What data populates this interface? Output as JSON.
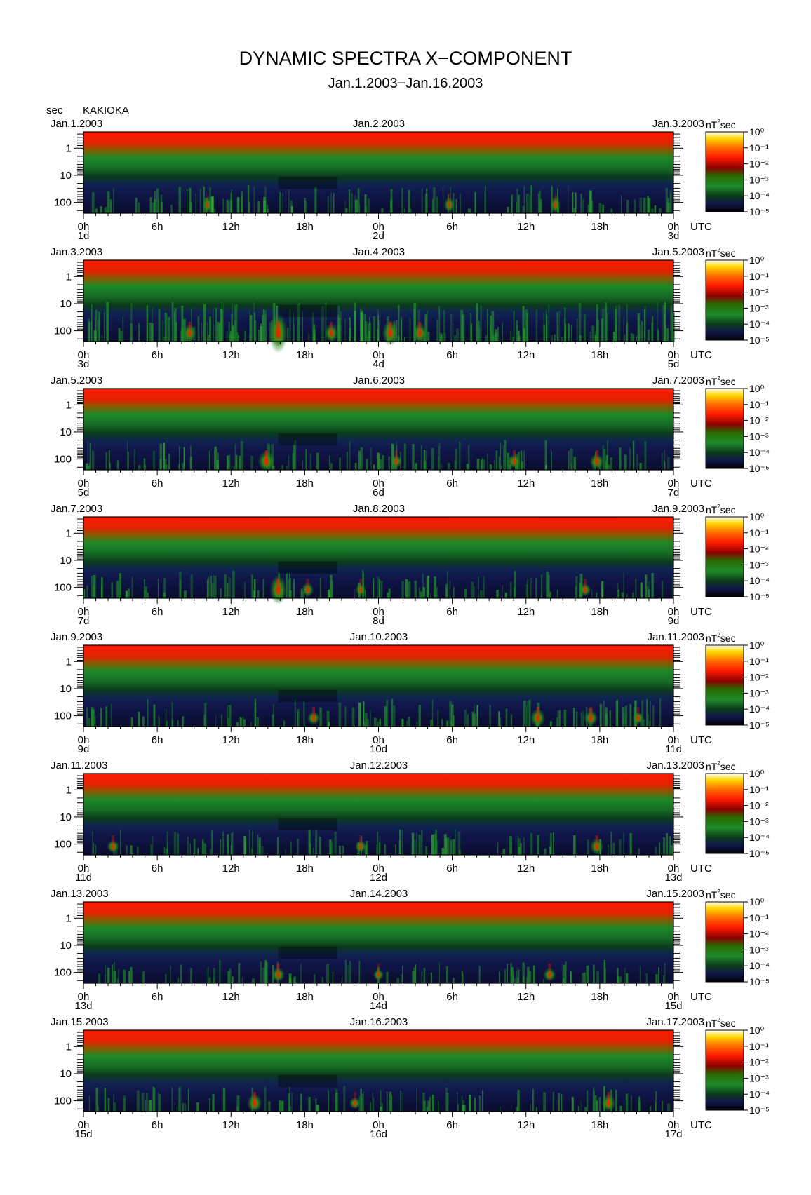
{
  "header": {
    "title": "DYNAMIC SPECTRA X−COMPONENT",
    "subtitle": "Jan.1.2003−Jan.16.2003",
    "y_unit": "sec",
    "station": "KAKIOKA"
  },
  "colors": {
    "red": "#ff1a00",
    "orange": "#ff6a00",
    "yellow": "#ffd800",
    "green": "#1e8a2a",
    "dark_green": "#0b3b1a",
    "navy": "#10164a",
    "black": "#000000"
  },
  "chart_data": {
    "type": "heatmap",
    "title": "DYNAMIC SPECTRA X−COMPONENT",
    "subtitle": "Jan.1.2003−Jan.16.2003",
    "ylabel": "sec",
    "y_scale": "log",
    "y_ticks": [
      "1",
      "10",
      "100"
    ],
    "x_ticks": [
      "0h",
      "6h",
      "12h",
      "18h",
      "0h",
      "6h",
      "12h",
      "18h",
      "0h"
    ],
    "x_unit": "UTC",
    "colorbar": {
      "label": "nT²sec",
      "labels": [
        "10⁰",
        "10⁻¹",
        "10⁻²",
        "10⁻³",
        "10⁻⁴",
        "10⁻⁵"
      ],
      "range": [
        1e-05,
        1
      ]
    },
    "panels": [
      {
        "left_date": "Jan.1.2003",
        "mid_date": "Jan.2.2003",
        "right_date": "Jan.3.2003",
        "day_labels": [
          "1d",
          "2d",
          "3d"
        ],
        "activity": 1.0,
        "events": [
          [
            0.8,
            0.25,
            0.5
          ],
          [
            0.62,
            0.3,
            0.4
          ],
          [
            0.21,
            0.15,
            0.6
          ]
        ]
      },
      {
        "left_date": "Jan.3.2003",
        "mid_date": "Jan.4.2003",
        "right_date": "Jan.5.2003",
        "day_labels": [
          "3d",
          "4d",
          "5d"
        ],
        "activity": 2.0,
        "events": [
          [
            0.33,
            0.9,
            0.6
          ],
          [
            0.52,
            0.7,
            0.45
          ],
          [
            0.18,
            0.45,
            0.4
          ],
          [
            0.42,
            0.5,
            0.4
          ],
          [
            0.57,
            0.55,
            0.4
          ]
        ]
      },
      {
        "left_date": "Jan.5.2003",
        "mid_date": "Jan.6.2003",
        "right_date": "Jan.7.2003",
        "day_labels": [
          "5d",
          "6d",
          "7d"
        ],
        "activity": 1.1,
        "events": [
          [
            0.31,
            0.75,
            0.35
          ],
          [
            0.87,
            0.55,
            0.3
          ],
          [
            0.73,
            0.45,
            0.3
          ],
          [
            0.53,
            0.4,
            0.3
          ]
        ]
      },
      {
        "left_date": "Jan.7.2003",
        "mid_date": "Jan.8.2003",
        "right_date": "Jan.9.2003",
        "day_labels": [
          "7d",
          "8d",
          "9d"
        ],
        "activity": 1.0,
        "events": [
          [
            0.33,
            0.75,
            0.5
          ],
          [
            0.38,
            0.4,
            0.35
          ],
          [
            0.47,
            0.3,
            0.3
          ],
          [
            0.85,
            0.4,
            0.3
          ]
        ]
      },
      {
        "left_date": "Jan.9.2003",
        "mid_date": "Jan.10.2003",
        "right_date": "Jan.11.2003",
        "day_labels": [
          "9d",
          "10d",
          "11d"
        ],
        "activity": 1.0,
        "events": [
          [
            0.77,
            0.6,
            0.35
          ],
          [
            0.86,
            0.55,
            0.3
          ],
          [
            0.39,
            0.45,
            0.3
          ],
          [
            0.94,
            0.35,
            0.3
          ]
        ]
      },
      {
        "left_date": "Jan.11.2003",
        "mid_date": "Jan.12.2003",
        "right_date": "Jan.13.2003",
        "day_labels": [
          "11d",
          "12d",
          "13d"
        ],
        "activity": 0.9,
        "events": [
          [
            0.87,
            0.5,
            0.35
          ],
          [
            0.47,
            0.35,
            0.3
          ],
          [
            0.05,
            0.4,
            0.3
          ]
        ]
      },
      {
        "left_date": "Jan.13.2003",
        "mid_date": "Jan.14.2003",
        "right_date": "Jan.15.2003",
        "day_labels": [
          "13d",
          "14d",
          "15d"
        ],
        "activity": 0.8,
        "events": [
          [
            0.33,
            0.5,
            0.3
          ],
          [
            0.79,
            0.45,
            0.3
          ],
          [
            0.5,
            0.3,
            0.3
          ]
        ]
      },
      {
        "left_date": "Jan.15.2003",
        "mid_date": "Jan.16.2003",
        "right_date": "Jan.17.2003",
        "day_labels": [
          "15d",
          "16d",
          "17d"
        ],
        "activity": 0.9,
        "events": [
          [
            0.29,
            0.6,
            0.35
          ],
          [
            0.89,
            0.55,
            0.35
          ],
          [
            0.46,
            0.35,
            0.3
          ]
        ]
      }
    ]
  }
}
